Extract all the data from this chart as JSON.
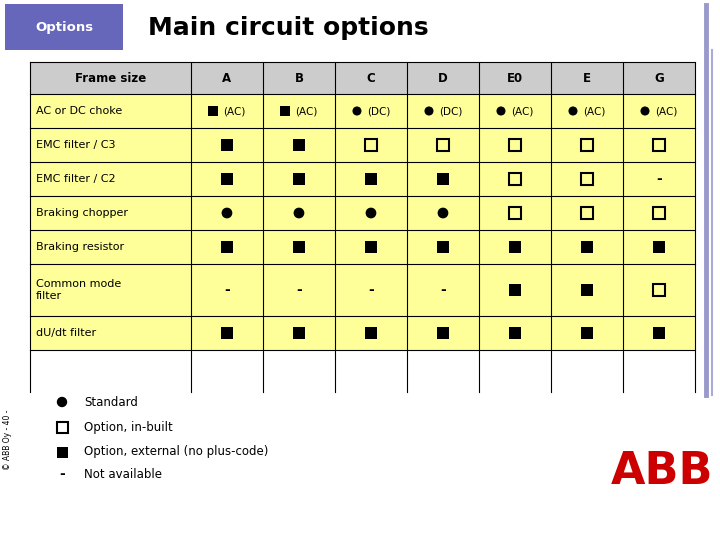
{
  "title": "Main circuit options",
  "header_label": "Options",
  "header_bg": "#6666bb",
  "header_text_color": "#ffffff",
  "title_color": "#000000",
  "table_bg_yellow": "#ffff99",
  "table_bg_gray": "#cccccc",
  "table_border": "#000000",
  "col_headers": [
    "Frame size",
    "A",
    "B",
    "C",
    "D",
    "E0",
    "E",
    "G"
  ],
  "rows": [
    [
      "AC or DC choke",
      "■ (AC)",
      "■ (AC)",
      "● (DC)",
      "● (DC)",
      "● (AC)",
      "● (AC)",
      "● (AC)"
    ],
    [
      "EMC filter / C3",
      "■",
      "■",
      "□",
      "□",
      "□",
      "□",
      "□"
    ],
    [
      "EMC filter / C2",
      "■",
      "■",
      "■",
      "■",
      "□",
      "□",
      "-"
    ],
    [
      "Braking chopper",
      "●",
      "●",
      "●",
      "●",
      "□",
      "□",
      "□"
    ],
    [
      "Braking resistor",
      "■",
      "■",
      "■",
      "■",
      "■",
      "■",
      "■"
    ],
    [
      "Common mode\nfilter",
      "-",
      "-",
      "-",
      "-",
      "■",
      "■",
      "□"
    ],
    [
      "dU/dt filter",
      "■",
      "■",
      "■",
      "■",
      "■",
      "■",
      "■"
    ]
  ],
  "legend": [
    [
      "●",
      "Standard"
    ],
    [
      "□",
      "Option, in-built"
    ],
    [
      "■",
      "Option, external (no plus-code)"
    ],
    [
      "-",
      "Not available"
    ]
  ],
  "side_text": "© ABB Oy - 40 -",
  "col_widths_ratio": [
    1.9,
    0.85,
    0.85,
    0.85,
    0.85,
    0.85,
    0.85,
    0.85
  ]
}
